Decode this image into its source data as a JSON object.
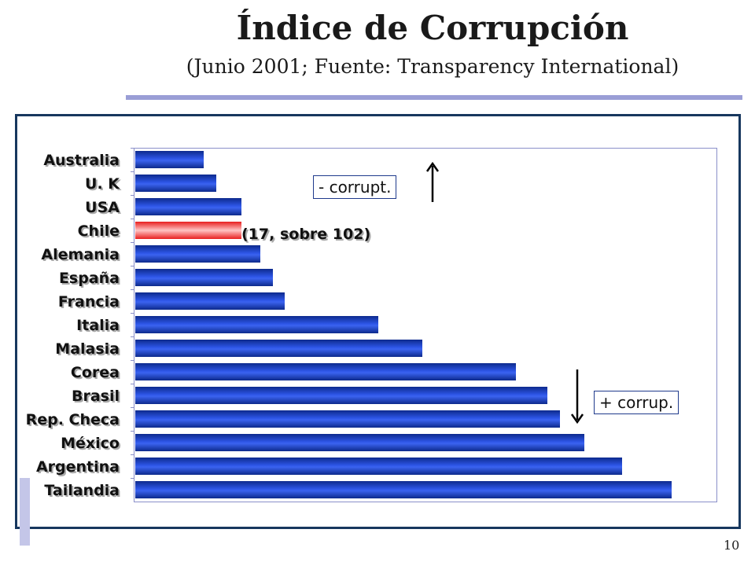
{
  "slide": {
    "title": "Índice de Corrupción",
    "subtitle": "(Junio 2001; Fuente: Transparency International)",
    "page_number": "10"
  },
  "annotations": {
    "chile_rank": "(17, sobre 102)",
    "less_corrupt": "- corrupt.",
    "more_corrupt": "+ corrup."
  },
  "colors": {
    "bar": "#2448d8",
    "highlight_bar": "#e81e1e",
    "frame": "#17375e",
    "accent_rule": "#9a9ed6"
  },
  "chart_data": {
    "type": "bar",
    "orientation": "horizontal",
    "title": "",
    "xlabel": "",
    "ylabel": "",
    "categories": [
      "Australia",
      "U. K",
      "USA",
      "Chile",
      "Alemania",
      "España",
      "Francia",
      "Italia",
      "Malasia",
      "Corea",
      "Brasil",
      "Rep. Checa",
      "México",
      "Argentina",
      "Tailandia"
    ],
    "values": [
      11,
      13,
      17,
      17,
      20,
      22,
      24,
      39,
      46,
      61,
      66,
      68,
      72,
      78,
      86
    ],
    "highlight_category": "Chile",
    "xlim": [
      0,
      93
    ],
    "grid": false,
    "legend": "none"
  }
}
